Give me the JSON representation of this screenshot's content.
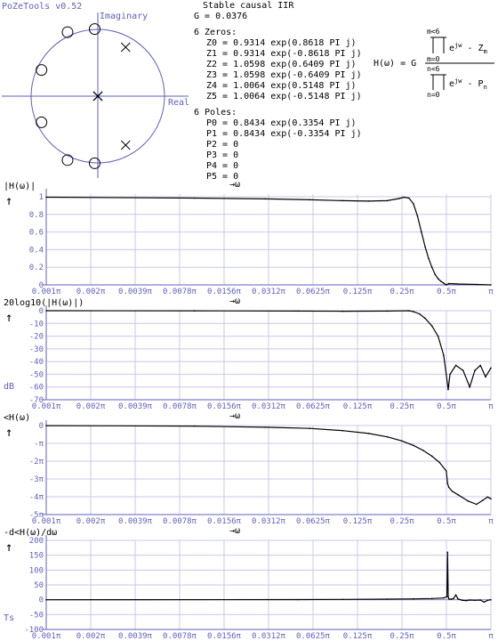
{
  "app": {
    "title": "PoZeTools v0.52"
  },
  "pz_plot": {
    "imag_label": "Imaginary",
    "real_label": "Real"
  },
  "info": {
    "stability": "Stable causal IIR",
    "gain": "G = 0.0376",
    "zeros_header": "6 Zeros:",
    "zeros": [
      "Z0 = 0.9314 exp(0.8618 PI j)",
      "Z1 = 0.9314 exp(-0.8618 PI j)",
      "Z2 = 1.0598 exp(0.6409 PI j)",
      "Z3 = 1.0598 exp(-0.6409 PI j)",
      "Z4 = 1.0064 exp(0.5148 PI j)",
      "Z5 = 1.0064 exp(-0.5148 PI j)"
    ],
    "poles_header": "6 Poles:",
    "poles": [
      "P0 = 0.8434 exp(0.3354 PI j)",
      "P1 = 0.8434 exp(-0.3354 PI j)",
      "P2 = 0",
      "P3 = 0",
      "P4 = 0",
      "P5 = 0"
    ]
  },
  "formula": {
    "lhs": "H(ω) = G",
    "prod_top": "m<6",
    "prod_bot": "m=0",
    "num_term": "e^jw - Z_m",
    "den_top": "n<6",
    "den_bot": "n=0",
    "den_term": "e^jw - P_n"
  },
  "colors": {
    "axis": "#5f5fbf",
    "grid": "#c8c8e8",
    "curve": "#000000",
    "marker": "#000000"
  },
  "chart_data": [
    {
      "type": "line",
      "ylabel": "|H(ω)|",
      "xlabel": "→ω",
      "x_scale": "log2",
      "x_ticks": [
        "0.001π",
        "0.002π",
        "0.0039π",
        "0.0078π",
        "0.0156π",
        "0.0312π",
        "0.0625π",
        "0.125π",
        "0.25π",
        "0.5π",
        "π"
      ],
      "y_ticks": [
        "0",
        "0.2",
        "0.4",
        "0.6",
        "0.8",
        "1"
      ],
      "ylim": [
        0,
        1.03
      ],
      "x": [
        0.001,
        0.01,
        0.03,
        0.06,
        0.1,
        0.15,
        0.2,
        0.24,
        0.26,
        0.28,
        0.3,
        0.32,
        0.34,
        0.36,
        0.38,
        0.4,
        0.42,
        0.44,
        0.46,
        0.48,
        0.5,
        0.52,
        0.6,
        0.8,
        1.0
      ],
      "y": [
        0.995,
        0.985,
        0.975,
        0.965,
        0.955,
        0.95,
        0.955,
        0.98,
        0.995,
        0.985,
        0.92,
        0.78,
        0.6,
        0.43,
        0.3,
        0.2,
        0.12,
        0.07,
        0.04,
        0.02,
        0.0,
        0.015,
        0.01,
        0.005,
        0.0
      ]
    },
    {
      "type": "line",
      "ylabel": "20log10(|H(ω)|)",
      "ylabel_unit": "dB",
      "xlabel": "→ω",
      "x_scale": "log2",
      "x_ticks": [
        "0.001π",
        "0.002π",
        "0.0039π",
        "0.0078π",
        "0.0156π",
        "0.0312π",
        "0.0625π",
        "0.125π",
        "0.25π",
        "0.5π",
        "π"
      ],
      "y_ticks": [
        "0",
        "-10",
        "-20",
        "-30",
        "-40",
        "-50",
        "-60",
        "-70"
      ],
      "ylim": [
        -70,
        0
      ],
      "x": [
        0.001,
        0.01,
        0.05,
        0.1,
        0.2,
        0.28,
        0.3,
        0.33,
        0.36,
        0.4,
        0.44,
        0.48,
        0.5,
        0.515,
        0.53,
        0.58,
        0.65,
        0.72,
        0.78,
        0.85,
        0.92,
        1.0
      ],
      "y": [
        0,
        -0.1,
        -0.3,
        -0.4,
        -0.3,
        0,
        -0.8,
        -2.5,
        -6,
        -12,
        -20,
        -35,
        -50,
        -62,
        -50,
        -43,
        -47,
        -60,
        -47,
        -43,
        -52,
        -45
      ]
    },
    {
      "type": "line",
      "ylabel": "<H(ω)",
      "xlabel": "→ω",
      "x_scale": "log2",
      "x_ticks": [
        "0.001π",
        "0.002π",
        "0.0039π",
        "0.0078π",
        "0.0156π",
        "0.0312π",
        "0.0625π",
        "0.125π",
        "0.25π",
        "0.5π",
        "π"
      ],
      "y_ticks": [
        "0",
        "-π",
        "-2π",
        "-3π",
        "-4π",
        "-5π"
      ],
      "ylim": [
        -15.7,
        0
      ],
      "x": [
        0.001,
        0.01,
        0.03,
        0.06,
        0.1,
        0.15,
        0.2,
        0.25,
        0.3,
        0.35,
        0.4,
        0.45,
        0.5,
        0.51,
        0.52,
        0.55,
        0.6,
        0.7,
        0.8,
        0.88,
        0.95,
        1.0
      ],
      "y": [
        -0.02,
        -0.1,
        -0.3,
        -0.5,
        -0.9,
        -1.4,
        -2.0,
        -2.7,
        -3.5,
        -4.4,
        -5.4,
        -6.5,
        -8.0,
        -10.2,
        -10.9,
        -11.6,
        -12.2,
        -13.3,
        -13.9,
        -13.2,
        -12.6,
        -12.9
      ]
    },
    {
      "type": "line",
      "ylabel": "-d<H(ω)/dω",
      "ylabel_unit": "Ts",
      "xlabel": "→ω",
      "x_scale": "log2",
      "x_ticks": [
        "0.001π",
        "0.002π",
        "0.0039π",
        "0.0078π",
        "0.0156π",
        "0.0312π",
        "0.0625π",
        "0.125π",
        "0.25π",
        "0.5π",
        "π"
      ],
      "y_ticks": [
        "200",
        "150",
        "100",
        "50",
        "0",
        "-50",
        "-100"
      ],
      "ylim": [
        -100,
        200
      ],
      "x": [
        0.001,
        0.05,
        0.1,
        0.2,
        0.3,
        0.4,
        0.48,
        0.505,
        0.51,
        0.515,
        0.52,
        0.54,
        0.56,
        0.58,
        0.6,
        0.64,
        0.68,
        0.72,
        0.78,
        0.85,
        0.9,
        0.95,
        1.0
      ],
      "y": [
        0,
        0.5,
        1,
        2,
        3,
        4,
        6,
        10,
        160,
        10,
        3,
        2,
        4,
        16,
        3,
        -2,
        -3,
        -1,
        -2,
        -1,
        -8,
        -2,
        0
      ]
    }
  ]
}
